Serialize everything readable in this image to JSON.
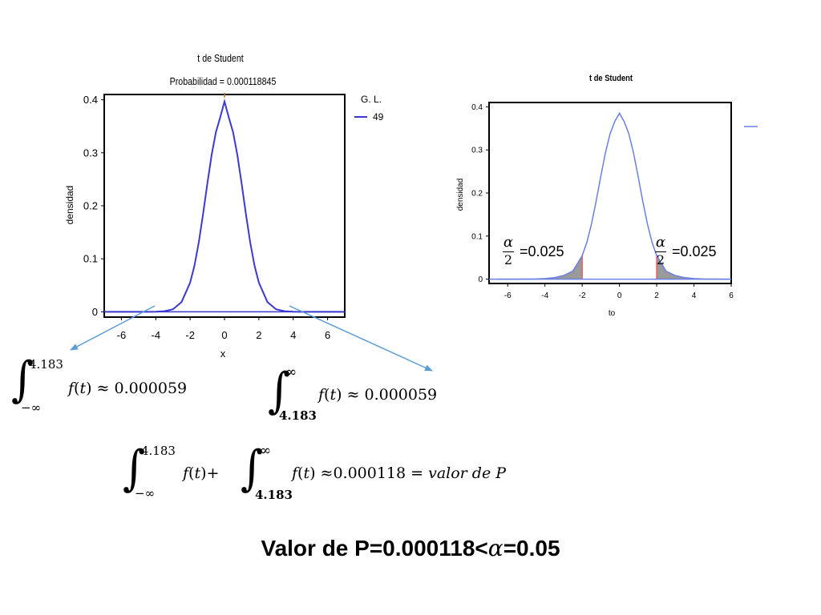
{
  "chart_data": [
    {
      "type": "line",
      "title": "t de Student",
      "subtitle": "Probabilidad = 0.000118845",
      "xlabel": "x",
      "ylabel": "densidad",
      "xlim": [
        -7,
        7
      ],
      "ylim": [
        -0.01,
        0.41
      ],
      "xticks": [
        -6,
        -4,
        -2,
        0,
        2,
        4,
        6
      ],
      "yticks": [
        0,
        0.1,
        0.2,
        0.3,
        0.4
      ],
      "grid": false,
      "legend": {
        "title": "G. L.",
        "position": "right",
        "entries": [
          "49"
        ]
      },
      "series": [
        {
          "name": "49",
          "color": "#3a3ad0",
          "x": [
            -7,
            -6.5,
            -6,
            -5.5,
            -5,
            -4.5,
            -4,
            -3.5,
            -3,
            -2.5,
            -2,
            -1.75,
            -1.5,
            -1.25,
            -1,
            -0.75,
            -0.5,
            -0.25,
            0,
            0.25,
            0.5,
            0.75,
            1,
            1.25,
            1.5,
            1.75,
            2,
            2.5,
            3,
            3.5,
            4,
            4.5,
            5,
            5.5,
            6,
            6.5,
            7
          ],
          "y": [
            0,
            0,
            0,
            0,
            0,
            0,
            0.0002,
            0.0011,
            0.0048,
            0.0184,
            0.0551,
            0.0868,
            0.1303,
            0.1838,
            0.2414,
            0.2956,
            0.3389,
            0.3668,
            0.3969,
            0.3668,
            0.3389,
            0.2956,
            0.2414,
            0.1838,
            0.1303,
            0.0868,
            0.0551,
            0.0184,
            0.0048,
            0.0011,
            0.0002,
            0,
            0,
            0,
            0,
            0,
            0
          ]
        }
      ]
    },
    {
      "type": "area",
      "title": "t de Student",
      "xlabel": "to",
      "ylabel": "densidad",
      "xlim": [
        -7,
        6
      ],
      "ylim": [
        -0.01,
        0.41
      ],
      "xticks": [
        -6,
        -4,
        -2,
        0,
        2,
        4,
        6
      ],
      "yticks": [
        0,
        0.1,
        0.2,
        0.3,
        0.4
      ],
      "grid": false,
      "shaded_tails": {
        "lower": -2,
        "upper": 2,
        "color": "#9a9a9a",
        "critical_line_color": "#e06060"
      },
      "series": [
        {
          "color": "#6b7fe0",
          "x": [
            -6.5,
            -6,
            -5.5,
            -5,
            -4.5,
            -4,
            -3.5,
            -3,
            -2.5,
            -2,
            -1.75,
            -1.5,
            -1.25,
            -1,
            -0.75,
            -0.5,
            -0.25,
            0,
            0.25,
            0.5,
            0.75,
            1,
            1.25,
            1.5,
            1.75,
            2,
            2.5,
            3,
            3.5,
            4,
            4.5,
            5,
            5.5,
            6
          ],
          "y": [
            0,
            0,
            0.0001,
            0.0002,
            0.0005,
            0.0013,
            0.0034,
            0.0083,
            0.0187,
            0.0545,
            0.0855,
            0.1284,
            0.1812,
            0.239,
            0.294,
            0.338,
            0.366,
            0.385,
            0.366,
            0.338,
            0.294,
            0.239,
            0.1812,
            0.1284,
            0.0855,
            0.0545,
            0.0187,
            0.0083,
            0.0034,
            0.0013,
            0.0005,
            0.0002,
            0.0001,
            0
          ]
        }
      ]
    }
  ],
  "colors": {
    "arrow": "#5b9bd5",
    "axis": "#000000"
  },
  "annotations": {
    "alpha_symbol": "𝛼",
    "two": "2",
    "alpha_half_value": "=0.025"
  },
  "equations": {
    "int_sign": "∫",
    "eq1": {
      "upper": "4.183",
      "lower": "−∞",
      "body": "𝑓(𝑡) ≈ 0.000059"
    },
    "eq2": {
      "upper": "∞",
      "lower": "4.183",
      "body": "𝑓(𝑡) ≈ 0.000059"
    },
    "eq3": {
      "upper1": "4.183",
      "lower1": "−∞",
      "body1": "𝑓(𝑡)+",
      "upper2": "∞",
      "lower2": "4.183",
      "body2": "𝑓(𝑡) ≈0.000118 = 𝑣𝑎𝑙𝑜𝑟 𝑑𝑒 𝑃"
    }
  },
  "conclusion": {
    "prefix": "Valor de P=0.000118<",
    "alpha": "𝛼",
    "suffix": "=0.05"
  }
}
